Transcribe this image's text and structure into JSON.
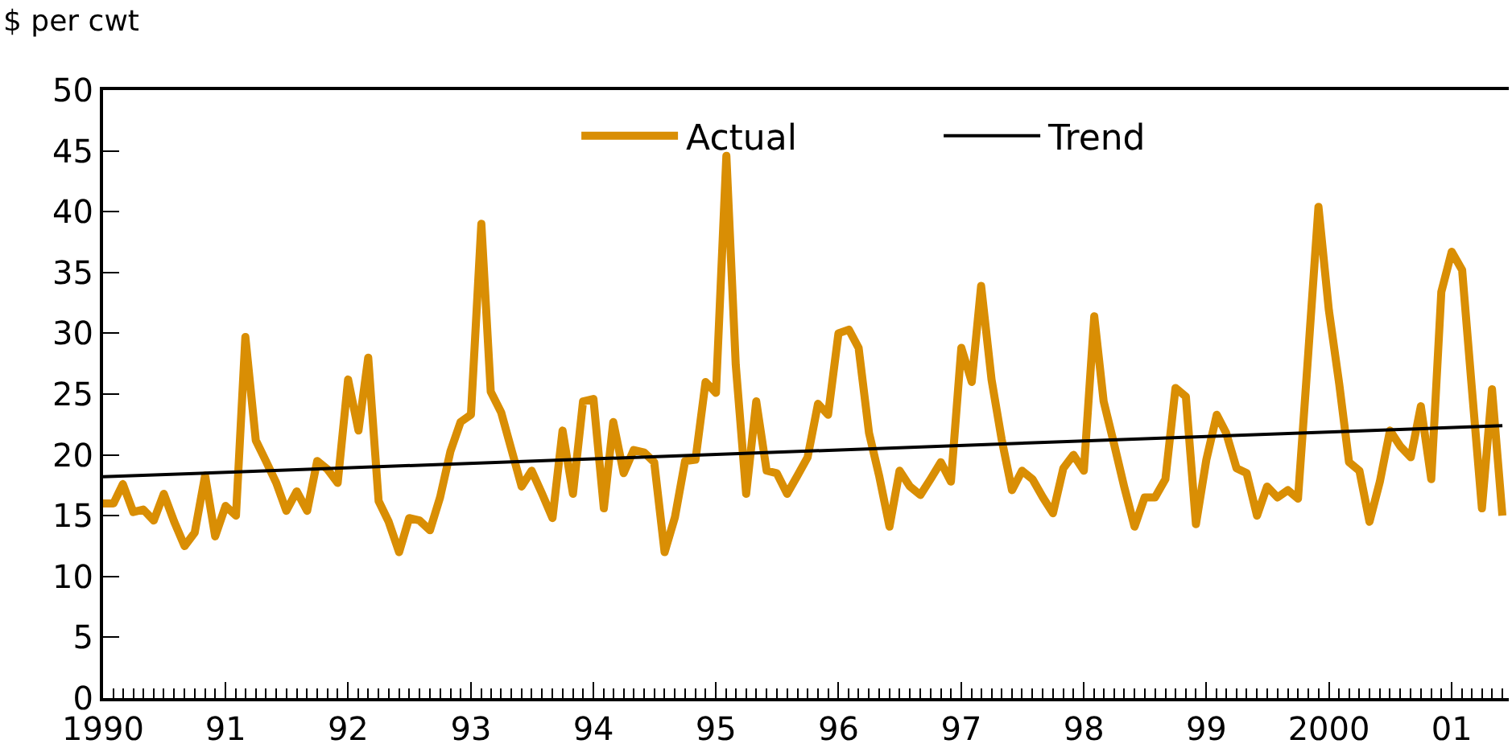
{
  "chart_data": {
    "type": "line",
    "ylabel": "$ per cwt",
    "x": [
      "1990-01",
      "1990-02",
      "1990-03",
      "1990-04",
      "1990-05",
      "1990-06",
      "1990-07",
      "1990-08",
      "1990-09",
      "1990-10",
      "1990-11",
      "1990-12",
      "1991-01",
      "1991-02",
      "1991-03",
      "1991-04",
      "1991-05",
      "1991-06",
      "1991-07",
      "1991-08",
      "1991-09",
      "1991-10",
      "1991-11",
      "1991-12",
      "1992-01",
      "1992-02",
      "1992-03",
      "1992-04",
      "1992-05",
      "1992-06",
      "1992-07",
      "1992-08",
      "1992-09",
      "1992-10",
      "1992-11",
      "1992-12",
      "1993-01",
      "1993-02",
      "1993-03",
      "1993-04",
      "1993-05",
      "1993-06",
      "1993-07",
      "1993-08",
      "1993-09",
      "1993-10",
      "1993-11",
      "1993-12",
      "1994-01",
      "1994-02",
      "1994-03",
      "1994-04",
      "1994-05",
      "1994-06",
      "1994-07",
      "1994-08",
      "1994-09",
      "1994-10",
      "1994-11",
      "1994-12",
      "1995-01",
      "1995-02",
      "1995-03",
      "1995-04",
      "1995-05",
      "1995-06",
      "1995-07",
      "1995-08",
      "1995-09",
      "1995-10",
      "1995-11",
      "1995-12",
      "1996-01",
      "1996-02",
      "1996-03",
      "1996-04",
      "1996-05",
      "1996-06",
      "1996-07",
      "1996-08",
      "1996-09",
      "1996-10",
      "1996-11",
      "1996-12",
      "1997-01",
      "1997-02",
      "1997-03",
      "1997-04",
      "1997-05",
      "1997-06",
      "1997-07",
      "1997-08",
      "1997-09",
      "1997-10",
      "1997-11",
      "1997-12",
      "1998-01",
      "1998-02",
      "1998-03",
      "1998-04",
      "1998-05",
      "1998-06",
      "1998-07",
      "1998-08",
      "1998-09",
      "1998-10",
      "1998-11",
      "1998-12",
      "1999-01",
      "1999-02",
      "1999-03",
      "1999-04",
      "1999-05",
      "1999-06",
      "1999-07",
      "1999-08",
      "1999-09",
      "1999-10",
      "1999-11",
      "1999-12",
      "2000-01",
      "2000-02",
      "2000-03",
      "2000-04",
      "2000-05",
      "2000-06",
      "2000-07",
      "2000-08",
      "2000-09",
      "2000-10",
      "2000-11",
      "2000-12",
      "2001-01",
      "2001-02",
      "2001-03",
      "2001-04",
      "2001-05",
      "2001-06"
    ],
    "series": [
      {
        "name": "Actual",
        "color": "#d98e04",
        "values": [
          16,
          16,
          17.6,
          15.3,
          15.5,
          14.6,
          16.8,
          14.5,
          12.5,
          13.6,
          18.3,
          13.3,
          15.8,
          15,
          29.7,
          21.2,
          19.5,
          17.7,
          15.4,
          17,
          15.4,
          19.5,
          18.8,
          17.7,
          26.2,
          22,
          28,
          16.2,
          14.5,
          12,
          14.8,
          14.6,
          13.8,
          16.5,
          20.3,
          22.7,
          23.3,
          39,
          25.2,
          23.5,
          20.5,
          17.4,
          18.7,
          16.8,
          14.8,
          22,
          16.8,
          24.4,
          24.6,
          15.6,
          22.7,
          18.5,
          20.4,
          20.2,
          19.4,
          12,
          14.9,
          19.5,
          19.6,
          26,
          25.1,
          44.6,
          27.4,
          16.8,
          24.4,
          18.7,
          18.5,
          16.8,
          18.3,
          19.8,
          24.2,
          23.3,
          30,
          30.3,
          28.8,
          21.8,
          18.3,
          14.1,
          18.7,
          17.4,
          16.7,
          18,
          19.4,
          17.8,
          28.8,
          26,
          33.9,
          26.2,
          21.3,
          17.1,
          18.7,
          18,
          16.5,
          15.2,
          18.9,
          20,
          18.7,
          31.4,
          24.4,
          20.9,
          17.4,
          14.1,
          16.5,
          16.5,
          18,
          25.5,
          24.8,
          14.3,
          19.6,
          23.3,
          21.8,
          18.9,
          18.5,
          15,
          17.4,
          16.5,
          17.1,
          16.4,
          28.5,
          40.4,
          31.9,
          25.8,
          19.4,
          18.7,
          14.5,
          17.8,
          22,
          20.7,
          19.8,
          24,
          18,
          33.4,
          36.7,
          35.2,
          25.8,
          15.6,
          25.4,
          15
        ]
      },
      {
        "name": "Trend",
        "color": "#000000",
        "x": [
          "1990-01",
          "2001-06"
        ],
        "values": [
          18.2,
          22.4
        ]
      }
    ],
    "xlim": [
      "1990-01-01",
      "2001-06-20"
    ],
    "xticks": [
      {
        "value": "1990-01-01",
        "label": "1990"
      },
      {
        "value": "1991-01-01",
        "label": "91"
      },
      {
        "value": "1992-01-01",
        "label": "92"
      },
      {
        "value": "1993-01-01",
        "label": "93"
      },
      {
        "value": "1994-01-01",
        "label": "94"
      },
      {
        "value": "1995-01-01",
        "label": "95"
      },
      {
        "value": "1996-01-01",
        "label": "96"
      },
      {
        "value": "1997-01-01",
        "label": "97"
      },
      {
        "value": "1998-01-01",
        "label": "98"
      },
      {
        "value": "1999-01-01",
        "label": "99"
      },
      {
        "value": "2000-01-01",
        "label": "2000"
      },
      {
        "value": "2001-01-01",
        "label": "01"
      }
    ],
    "ylim": [
      0,
      50
    ],
    "yticks": [
      0,
      5,
      10,
      15,
      20,
      25,
      30,
      35,
      40,
      45,
      50
    ],
    "grid": false,
    "legend": "top right",
    "marker": "none",
    "line_style": "solid"
  }
}
